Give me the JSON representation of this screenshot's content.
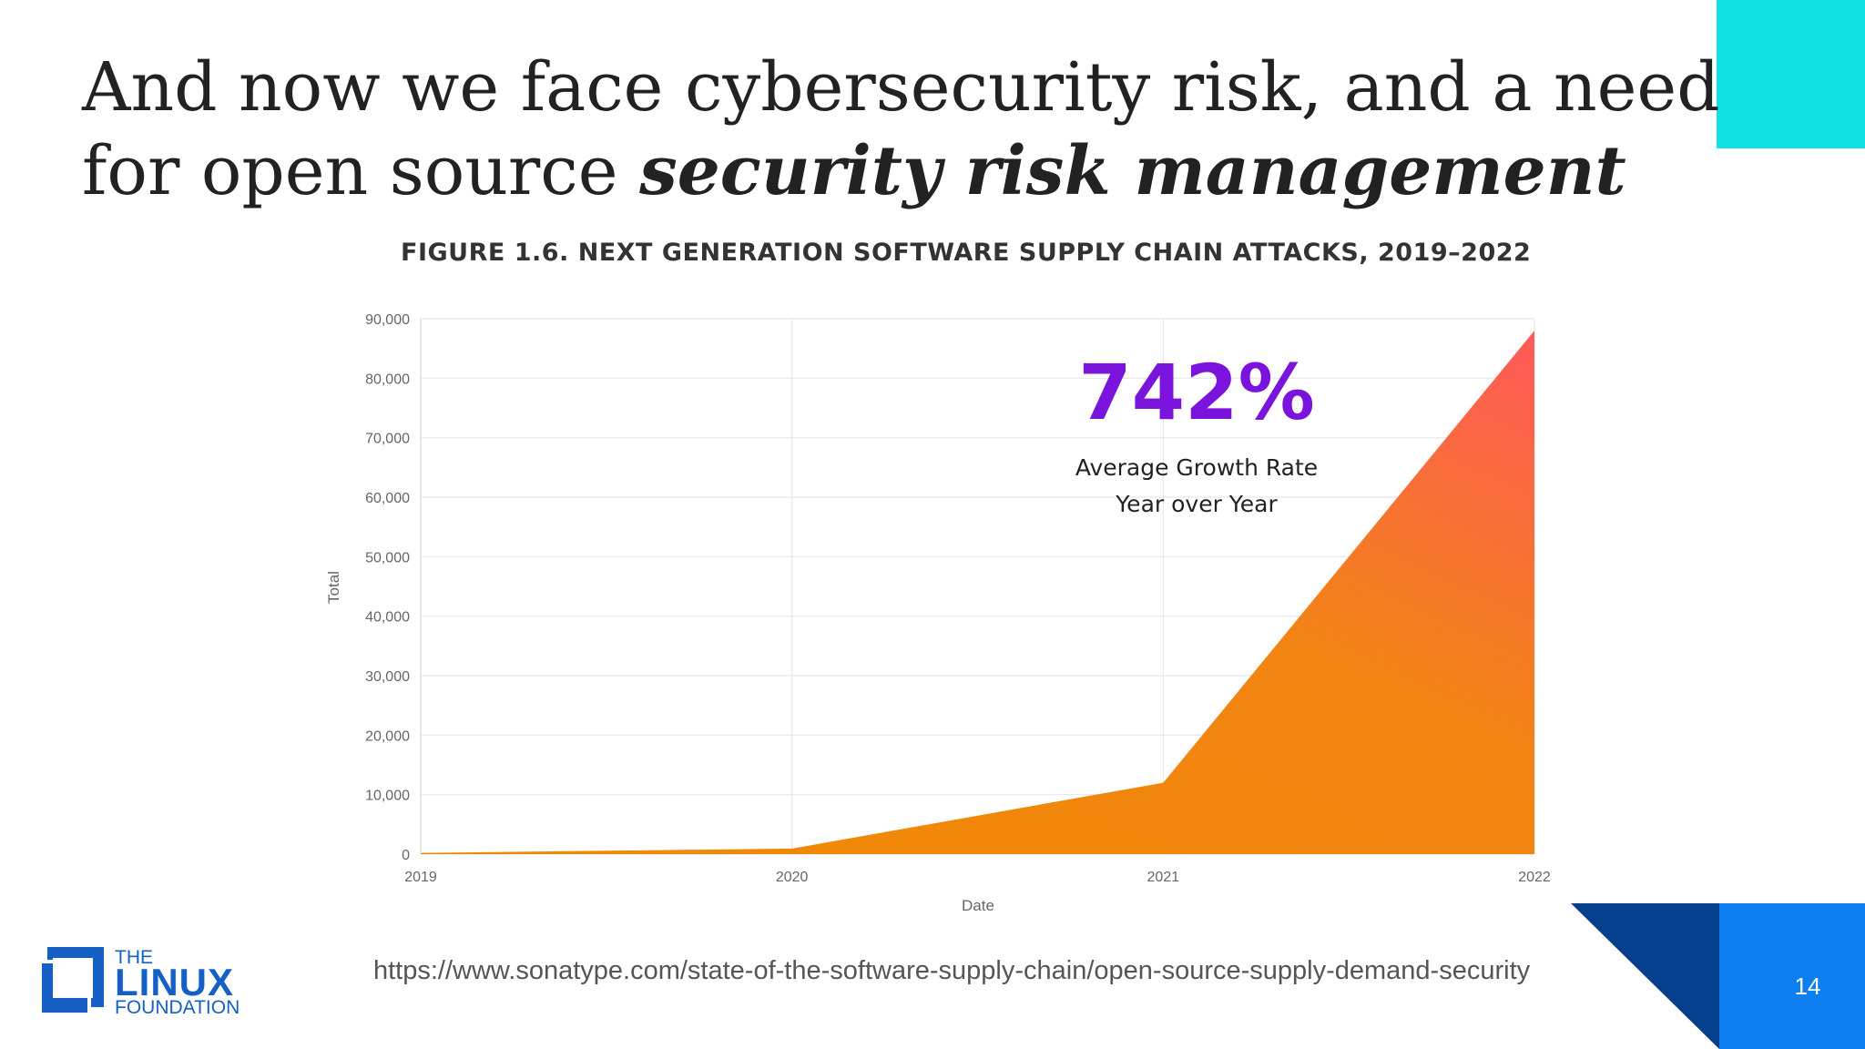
{
  "slide": {
    "title_line1": "And now we face cybersecurity risk, and a need",
    "title_line2_plain": "for open source ",
    "title_line2_emphasis": "security risk management",
    "source_url": "https://www.sonatype.com/state-of-the-software-supply-chain/open-source-supply-demand-security",
    "page_number": "14",
    "logo": {
      "the": "THE",
      "linux": "LINUX",
      "foundation": "FOUNDATION",
      "color": "#1460c4"
    },
    "accent_cyan": "#10e2e4",
    "accent_blue": "#0d7ff0",
    "accent_navy": "#053f8c"
  },
  "chart_data": {
    "type": "area",
    "title": "FIGURE 1.6. NEXT GENERATION SOFTWARE SUPPLY CHAIN ATTACKS, 2019–2022",
    "xlabel": "Date",
    "ylabel": "Total",
    "categories": [
      "2019",
      "2020",
      "2021",
      "2022"
    ],
    "values": [
      200,
      929,
      12000,
      88000
    ],
    "ylim": [
      0,
      90000
    ],
    "yticks": [
      0,
      10000,
      20000,
      30000,
      40000,
      50000,
      60000,
      70000,
      80000,
      90000
    ],
    "ytick_labels": [
      "0",
      "10,000",
      "20,000",
      "30,000",
      "40,000",
      "50,000",
      "60,000",
      "70,000",
      "80,000",
      "90,000"
    ],
    "grid": true,
    "gradient": [
      "#f08a00",
      "#ff5a5a"
    ],
    "annotation": {
      "value": "742%",
      "line1": "Average Growth Rate",
      "line2": "Year over Year",
      "color": "#7a14dc"
    }
  }
}
